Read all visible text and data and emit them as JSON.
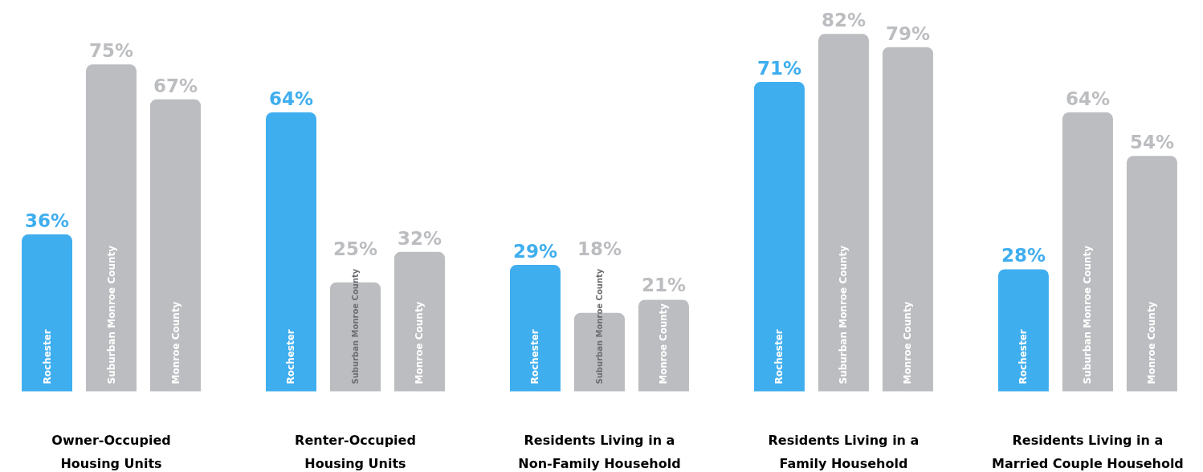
{
  "chart_data": {
    "type": "bar",
    "categories": [
      "Owner-Occupied\nHousing Units",
      "Renter-Occupied\nHousing Units",
      "Residents Living in a\nNon-Family Household",
      "Residents Living in a\nFamily Household",
      "Residents Living in a\nMarried Couple Household"
    ],
    "series": [
      {
        "name": "Rochester",
        "color": "#3faeef",
        "values": [
          36,
          64,
          29,
          71,
          28
        ],
        "value_labels": [
          "36%",
          "64%",
          "29%",
          "71%",
          "28%"
        ]
      },
      {
        "name": "Suburban Monroe County",
        "color": "#bcbdc0",
        "values": [
          75,
          25,
          18,
          82,
          64
        ],
        "value_labels": [
          "75%",
          "25%",
          "18%",
          "82%",
          "64%"
        ]
      },
      {
        "name": "Monroe County",
        "color": "#bcbdc0",
        "values": [
          67,
          32,
          21,
          79,
          54
        ],
        "value_labels": [
          "67%",
          "32%",
          "21%",
          "79%",
          "54%"
        ]
      }
    ]
  }
}
